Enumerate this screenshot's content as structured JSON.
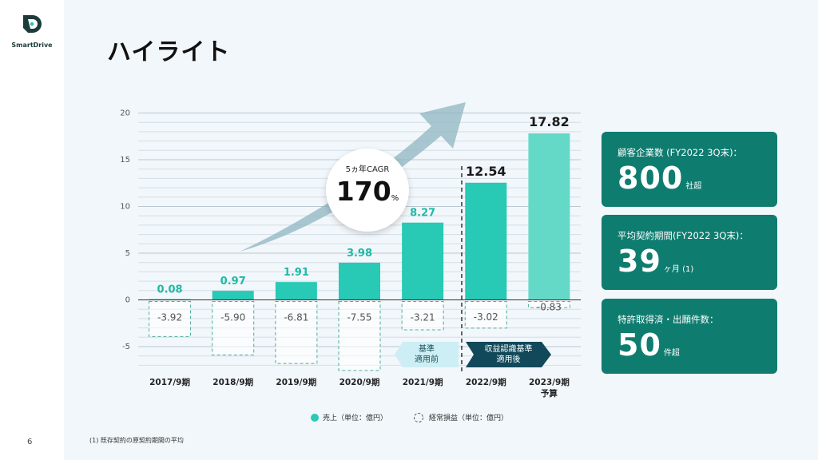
{
  "brand": {
    "name": "SmartDrive"
  },
  "page": {
    "title": "ハイライト",
    "number": "6"
  },
  "footnote": "(1) 既存契約の原契約期間の平均",
  "colors": {
    "accent": "#28c9b5",
    "forecast": "#64d9c8",
    "card": "#0f7c70",
    "label_green": "#1fb9a6",
    "tag_dark": "#12495a",
    "tag_light": "#cdeef4"
  },
  "cagr": {
    "label": "5ヵ年CAGR",
    "value": "170",
    "unit": "%"
  },
  "chart_data": {
    "type": "bar",
    "categories": [
      "2017/9期",
      "2018/9期",
      "2019/9期",
      "2020/9期",
      "2021/9期",
      "2022/9期",
      "2023/9期"
    ],
    "category_note": {
      "2023/9期": "予算"
    },
    "series": [
      {
        "name": "売上（単位：億円）",
        "values": [
          0.08,
          0.97,
          1.91,
          3.98,
          8.27,
          12.54,
          17.82
        ]
      },
      {
        "name": "経常損益（単位：億円）",
        "values": [
          -3.92,
          -5.9,
          -6.81,
          -7.55,
          -3.21,
          -3.02,
          -0.83
        ]
      }
    ],
    "value_labels": {
      "sales": [
        "0.08",
        "0.97",
        "1.91",
        "3.98",
        "8.27",
        "12.54",
        "17.82"
      ],
      "ordinary": [
        "-3.92",
        "-5.90",
        "-6.81",
        "-7.55",
        "-3.21",
        "-3.02",
        "-0.83"
      ]
    },
    "ylim": [
      -7.5,
      20
    ],
    "yticks": [
      20,
      15,
      10,
      5,
      0,
      -5
    ],
    "grid": true,
    "legend_position": "bottom",
    "annotations": [
      {
        "text": "基準\n適用前"
      },
      {
        "text": "収益認識基準\n適用後"
      }
    ]
  },
  "kpis": [
    {
      "label": "顧客企業数 (FY2022 3Q末)：",
      "value": "800",
      "unit": "社超"
    },
    {
      "label": "平均契約期間(FY2022 3Q末)：",
      "value": "39",
      "unit": "ヶ月 (1)"
    },
    {
      "label": "特許取得済・出願件数：",
      "value": "50",
      "unit": "件超"
    }
  ]
}
